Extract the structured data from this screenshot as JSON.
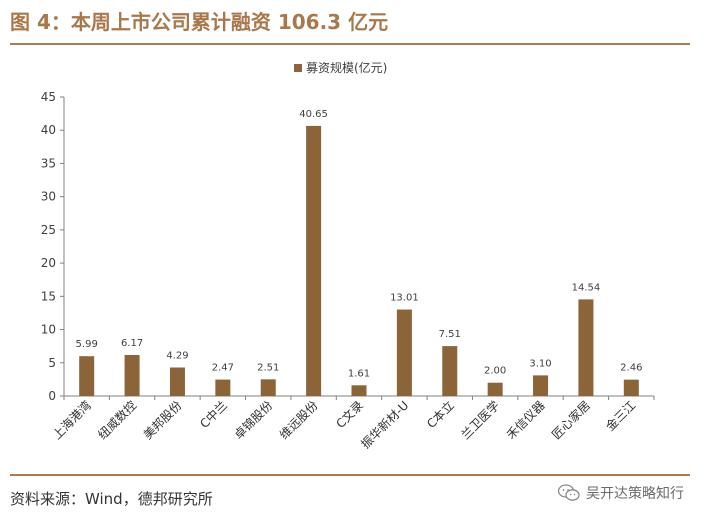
{
  "figure": {
    "title": "图 4：本周上市公司累计融资 106.3 亿元",
    "source": "资料来源：Wind，德邦研究所",
    "watermark": "吴开达策略知行",
    "bar_color": "#8b6438"
  },
  "chart_data": {
    "type": "bar",
    "categories": [
      "上海港湾",
      "纽威数控",
      "美邦股份",
      "C中兰",
      "卓锦股份",
      "维远股份",
      "C文录",
      "振华新材-U",
      "C本立",
      "兰卫医学",
      "禾信仪器",
      "匠心家居",
      "金三江"
    ],
    "series": [
      {
        "name": "募资规模(亿元)",
        "values": [
          5.99,
          6.17,
          4.29,
          2.47,
          2.51,
          40.65,
          1.61,
          13.01,
          7.51,
          2.0,
          3.1,
          14.54,
          2.46
        ],
        "labels": [
          "5.99",
          "6.17",
          "4.29",
          "2.47",
          "2.51",
          "40.65",
          "1.61",
          "13.01",
          "7.51",
          "2.00",
          "3.10",
          "14.54",
          "2.46"
        ]
      }
    ],
    "yticks": [
      "0",
      "5",
      "10",
      "15",
      "20",
      "25",
      "30",
      "35",
      "40",
      "45"
    ],
    "ylim": [
      0,
      45
    ],
    "xlabel": "",
    "ylabel": "",
    "legend": "top-center",
    "grid": false
  }
}
